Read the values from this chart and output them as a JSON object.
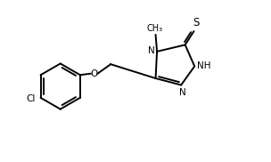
{
  "background": "#ffffff",
  "line_color": "#000000",
  "line_width": 1.4,
  "font_size": 7.5,
  "fig_width": 3.04,
  "fig_height": 1.82,
  "dpi": 100,
  "xlim": [
    0,
    10
  ],
  "ylim": [
    0,
    6
  ]
}
